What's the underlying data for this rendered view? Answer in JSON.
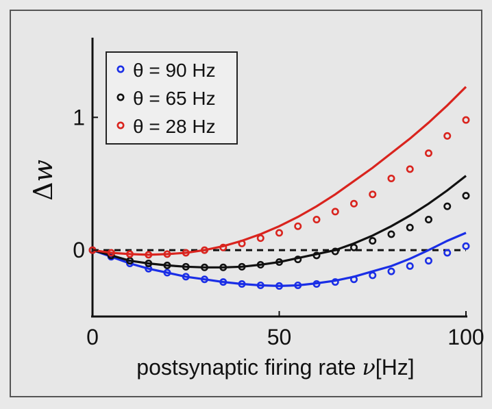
{
  "chart_data": {
    "type": "line",
    "xlabel_main": "postsynaptic firing rate ",
    "xlabel_symbol": "ν",
    "xlabel_unit": "[Hz]",
    "ylabel_delta": "Δ",
    "ylabel_w": "w",
    "xlim": [
      0,
      100
    ],
    "ylim": [
      -0.5,
      1.6
    ],
    "x_ticks": [
      0,
      50,
      100
    ],
    "x_tick_labels": [
      "0",
      "50",
      "100"
    ],
    "y_ticks": [
      0,
      1
    ],
    "y_tick_labels": [
      "0",
      "1"
    ],
    "reference_line": {
      "y": 0,
      "style": "dashed",
      "color": "#111111"
    },
    "legend_position": "top-left",
    "series": [
      {
        "name": "θ = 90 Hz",
        "color": "#1a2ee6",
        "curve": [
          [
            0,
            0
          ],
          [
            5,
            -0.05
          ],
          [
            10,
            -0.1
          ],
          [
            15,
            -0.14
          ],
          [
            20,
            -0.17
          ],
          [
            25,
            -0.2
          ],
          [
            30,
            -0.22
          ],
          [
            35,
            -0.24
          ],
          [
            40,
            -0.255
          ],
          [
            45,
            -0.265
          ],
          [
            50,
            -0.27
          ],
          [
            55,
            -0.265
          ],
          [
            60,
            -0.25
          ],
          [
            65,
            -0.23
          ],
          [
            70,
            -0.2
          ],
          [
            75,
            -0.16
          ],
          [
            80,
            -0.12
          ],
          [
            85,
            -0.065
          ],
          [
            90,
            0.0
          ],
          [
            95,
            0.07
          ],
          [
            100,
            0.13
          ]
        ],
        "points": [
          [
            0,
            0
          ],
          [
            5,
            -0.05
          ],
          [
            10,
            -0.1
          ],
          [
            15,
            -0.14
          ],
          [
            20,
            -0.17
          ],
          [
            25,
            -0.2
          ],
          [
            30,
            -0.22
          ],
          [
            35,
            -0.24
          ],
          [
            40,
            -0.255
          ],
          [
            45,
            -0.265
          ],
          [
            50,
            -0.27
          ],
          [
            55,
            -0.265
          ],
          [
            60,
            -0.255
          ],
          [
            65,
            -0.24
          ],
          [
            70,
            -0.22
          ],
          [
            75,
            -0.19
          ],
          [
            80,
            -0.16
          ],
          [
            85,
            -0.12
          ],
          [
            90,
            -0.08
          ],
          [
            95,
            -0.02
          ],
          [
            100,
            0.03
          ]
        ]
      },
      {
        "name": "θ = 65 Hz",
        "color": "#111111",
        "curve": [
          [
            0,
            0
          ],
          [
            5,
            -0.04
          ],
          [
            10,
            -0.08
          ],
          [
            15,
            -0.1
          ],
          [
            20,
            -0.115
          ],
          [
            25,
            -0.125
          ],
          [
            30,
            -0.13
          ],
          [
            35,
            -0.13
          ],
          [
            40,
            -0.125
          ],
          [
            45,
            -0.11
          ],
          [
            50,
            -0.09
          ],
          [
            55,
            -0.06
          ],
          [
            60,
            -0.03
          ],
          [
            65,
            0.0
          ],
          [
            70,
            0.05
          ],
          [
            75,
            0.11
          ],
          [
            80,
            0.18
          ],
          [
            85,
            0.26
          ],
          [
            90,
            0.35
          ],
          [
            95,
            0.45
          ],
          [
            100,
            0.56
          ]
        ],
        "points": [
          [
            0,
            0
          ],
          [
            5,
            -0.04
          ],
          [
            10,
            -0.08
          ],
          [
            15,
            -0.1
          ],
          [
            20,
            -0.115
          ],
          [
            25,
            -0.125
          ],
          [
            30,
            -0.13
          ],
          [
            35,
            -0.13
          ],
          [
            40,
            -0.125
          ],
          [
            45,
            -0.11
          ],
          [
            50,
            -0.09
          ],
          [
            55,
            -0.07
          ],
          [
            60,
            -0.04
          ],
          [
            65,
            -0.01
          ],
          [
            70,
            0.02
          ],
          [
            75,
            0.07
          ],
          [
            80,
            0.12
          ],
          [
            85,
            0.17
          ],
          [
            90,
            0.23
          ],
          [
            95,
            0.33
          ],
          [
            100,
            0.41
          ]
        ]
      },
      {
        "name": "θ = 28 Hz",
        "color": "#d9241e",
        "curve": [
          [
            0,
            0
          ],
          [
            5,
            -0.02
          ],
          [
            10,
            -0.03
          ],
          [
            15,
            -0.035
          ],
          [
            20,
            -0.03
          ],
          [
            25,
            -0.02
          ],
          [
            30,
            0.0
          ],
          [
            35,
            0.03
          ],
          [
            40,
            0.07
          ],
          [
            45,
            0.12
          ],
          [
            50,
            0.18
          ],
          [
            55,
            0.25
          ],
          [
            60,
            0.33
          ],
          [
            65,
            0.42
          ],
          [
            70,
            0.52
          ],
          [
            75,
            0.62
          ],
          [
            80,
            0.73
          ],
          [
            85,
            0.84
          ],
          [
            90,
            0.96
          ],
          [
            95,
            1.09
          ],
          [
            100,
            1.23
          ]
        ],
        "points": [
          [
            0,
            0
          ],
          [
            5,
            -0.02
          ],
          [
            10,
            -0.03
          ],
          [
            15,
            -0.035
          ],
          [
            20,
            -0.03
          ],
          [
            25,
            -0.02
          ],
          [
            30,
            0.0
          ],
          [
            35,
            0.02
          ],
          [
            40,
            0.05
          ],
          [
            45,
            0.09
          ],
          [
            50,
            0.13
          ],
          [
            55,
            0.18
          ],
          [
            60,
            0.23
          ],
          [
            65,
            0.29
          ],
          [
            70,
            0.35
          ],
          [
            75,
            0.42
          ],
          [
            80,
            0.54
          ],
          [
            85,
            0.61
          ],
          [
            90,
            0.73
          ],
          [
            95,
            0.86
          ],
          [
            100,
            0.98
          ]
        ]
      }
    ]
  }
}
